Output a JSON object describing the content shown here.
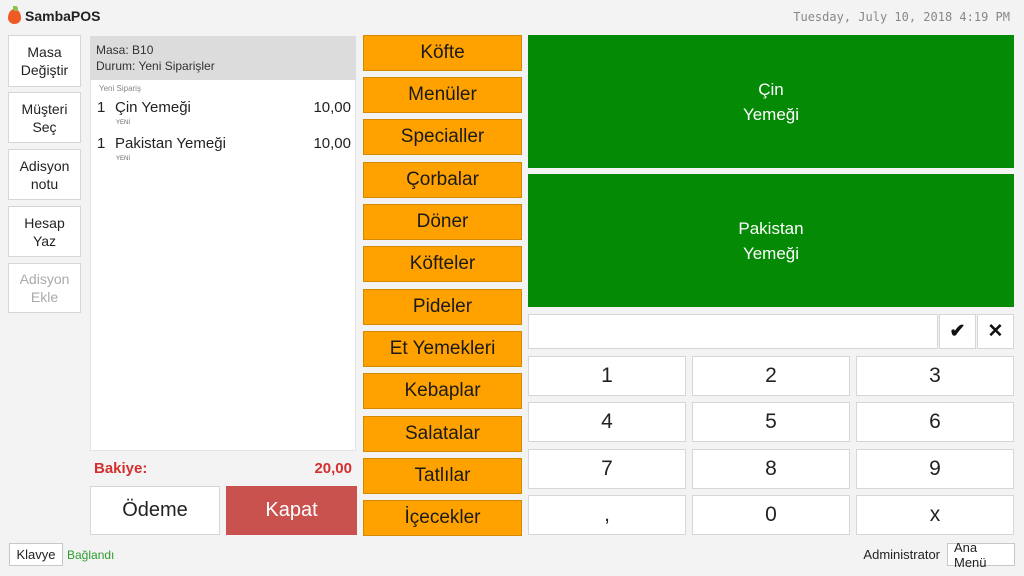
{
  "header": {
    "app_name": "SambaPOS",
    "datetime": "Tuesday, July 10, 2018 4:19 PM"
  },
  "left_actions": [
    {
      "label_line1": "Masa",
      "label_line2": "Değiştir",
      "enabled": true
    },
    {
      "label_line1": "Müşteri",
      "label_line2": "Seç",
      "enabled": true
    },
    {
      "label_line1": "Adisyon",
      "label_line2": "notu",
      "enabled": true
    },
    {
      "label_line1": "Hesap Yaz",
      "label_line2": "",
      "enabled": true
    },
    {
      "label_line1": "Adisyon",
      "label_line2": "Ekle",
      "enabled": false
    }
  ],
  "ticket": {
    "table": "Masa: B10",
    "status": "Durum: Yeni Siparişler",
    "section_label": "Yeni Sipariş",
    "orders": [
      {
        "qty": "1",
        "name": "Çin Yemeği",
        "status": "YENİ",
        "price": "10,00"
      },
      {
        "qty": "1",
        "name": "Pakistan Yemeği",
        "status": "YENİ",
        "price": "10,00"
      }
    ],
    "balance_label": "Bakiye:",
    "balance_value": "20,00",
    "pay_label": "Ödeme",
    "close_label": "Kapat"
  },
  "categories": [
    "Köfte",
    "Menüler",
    "Specialler",
    "Çorbalar",
    "Döner",
    "Köfteler",
    "Pideler",
    "Et Yemekleri",
    "Kebaplar",
    "Salatalar",
    "Tatlılar",
    "İçecekler"
  ],
  "menu_items": [
    {
      "line1": "Çin",
      "line2": "Yemeği"
    },
    {
      "line1": "Pakistan",
      "line2": "Yemeği"
    }
  ],
  "numpad": {
    "input_value": "",
    "confirm_icon": "check-icon",
    "clear_icon": "close-icon",
    "keys": [
      "1",
      "2",
      "3",
      "4",
      "5",
      "6",
      "7",
      "8",
      "9",
      ",",
      "0",
      "x"
    ]
  },
  "footer": {
    "keyboard_label": "Klavye",
    "connection_status": "Bağlandı",
    "user": "Administrator",
    "main_menu_label": "Ana Menü"
  },
  "colors": {
    "category": "#ffa200",
    "menu_item": "#048a04",
    "close_button": "#c9524f",
    "balance": "#d32f2f",
    "connected": "#2e9d2e",
    "brand": "#ef5a24"
  }
}
